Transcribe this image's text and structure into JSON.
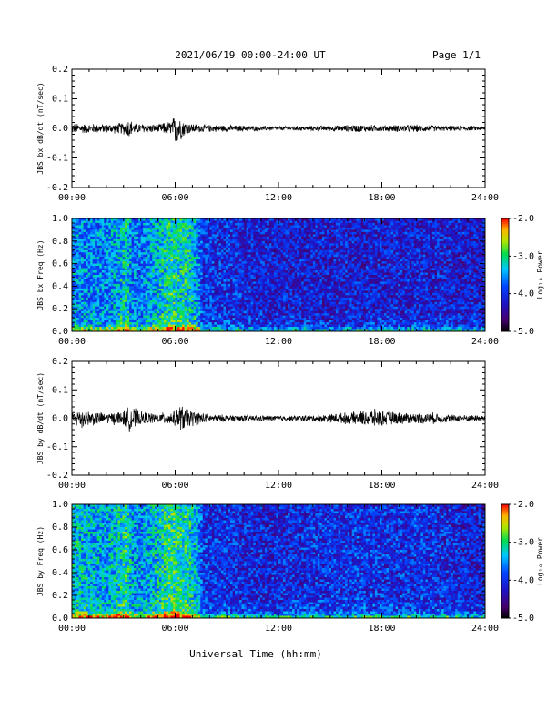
{
  "header": {
    "title": "2021/06/19  00:00-24:00 UT",
    "page": "Page 1/1"
  },
  "x_axis_label": "Universal Time (hh:mm)",
  "colors": {
    "trace": "#000000",
    "background": "#ffffff"
  },
  "chart_data": [
    {
      "type": "line",
      "ylabel": "JBS bx dB/dt (nT/sec)",
      "ylim": [
        -0.2,
        0.2
      ],
      "yticks": [
        "0.2",
        "0.1",
        "0.0",
        "-0.1",
        "-0.2"
      ],
      "xlim": [
        0,
        24
      ],
      "xticks": [
        "00:00",
        "06:00",
        "12:00",
        "18:00",
        "24:00"
      ],
      "envelope": {
        "hours": [
          0,
          1,
          2,
          3,
          3.3,
          3.6,
          4,
          5,
          5.8,
          6.1,
          6.4,
          6.8,
          7.5,
          9,
          12,
          15,
          16.5,
          18,
          20,
          21.5,
          24
        ],
        "amplitude": [
          0.02,
          0.018,
          0.016,
          0.022,
          0.04,
          0.02,
          0.018,
          0.015,
          0.03,
          0.065,
          0.035,
          0.02,
          0.014,
          0.012,
          0.008,
          0.01,
          0.014,
          0.012,
          0.014,
          0.01,
          0.008
        ]
      }
    },
    {
      "type": "heatmap",
      "ylabel": "JBS bx Freq (Hz)",
      "ylim": [
        0,
        1
      ],
      "yticks": [
        "1.0",
        "0.8",
        "0.6",
        "0.4",
        "0.2",
        "0.0"
      ],
      "xlim": [
        0,
        24
      ],
      "xticks": [
        "00:00",
        "06:00",
        "12:00",
        "18:00",
        "24:00"
      ],
      "colorbar": {
        "label": "Log₁₀ Power",
        "ticks": [
          "-2.0",
          "-3.0",
          "-4.0",
          "-5.0"
        ],
        "range": [
          -5,
          -2
        ]
      },
      "activity": {
        "hours": [
          0,
          2,
          3.2,
          3.5,
          4,
          5.8,
          6.2,
          6.6,
          7.3,
          7.6,
          9,
          12,
          15,
          18,
          21,
          24
        ],
        "level": [
          0.55,
          0.5,
          0.75,
          0.5,
          0.5,
          0.8,
          0.75,
          0.78,
          0.6,
          0.3,
          0.28,
          0.2,
          0.2,
          0.22,
          0.22,
          0.2
        ]
      }
    },
    {
      "type": "line",
      "ylabel": "JBS by dB/dt (nT/sec)",
      "ylim": [
        -0.2,
        0.2
      ],
      "yticks": [
        "0.2",
        "0.1",
        "0.0",
        "-0.1",
        "-0.2"
      ],
      "xlim": [
        0,
        24
      ],
      "xticks": [
        "00:00",
        "06:00",
        "12:00",
        "18:00",
        "24:00"
      ],
      "envelope": {
        "hours": [
          0,
          0.5,
          1,
          2,
          3,
          3.4,
          4,
          5,
          6,
          6.3,
          6.8,
          8,
          10,
          12,
          14,
          16.5,
          17.5,
          18.5,
          20,
          21,
          22,
          24
        ],
        "amplitude": [
          0.02,
          0.045,
          0.03,
          0.02,
          0.03,
          0.05,
          0.025,
          0.018,
          0.03,
          0.055,
          0.035,
          0.015,
          0.012,
          0.01,
          0.012,
          0.025,
          0.035,
          0.025,
          0.02,
          0.022,
          0.014,
          0.012
        ]
      }
    },
    {
      "type": "heatmap",
      "ylabel": "JBS by Freq (Hz)",
      "ylim": [
        0,
        1
      ],
      "yticks": [
        "1.0",
        "0.8",
        "0.6",
        "0.4",
        "0.2",
        "0.0"
      ],
      "xlim": [
        0,
        24
      ],
      "xticks": [
        "00:00",
        "06:00",
        "12:00",
        "18:00",
        "24:00"
      ],
      "colorbar": {
        "label": "Log₁₀ Power",
        "ticks": [
          "-2.0",
          "-3.0",
          "-4.0",
          "-5.0"
        ],
        "range": [
          -5,
          -2
        ]
      },
      "activity": {
        "hours": [
          0,
          1,
          2,
          3.2,
          3.5,
          4,
          5.8,
          6.2,
          6.6,
          7.3,
          7.6,
          9,
          11,
          14,
          17,
          18,
          20,
          22,
          24
        ],
        "level": [
          0.7,
          0.65,
          0.6,
          0.8,
          0.6,
          0.55,
          0.85,
          0.8,
          0.8,
          0.65,
          0.3,
          0.28,
          0.22,
          0.28,
          0.3,
          0.28,
          0.3,
          0.25,
          0.2
        ]
      }
    }
  ]
}
